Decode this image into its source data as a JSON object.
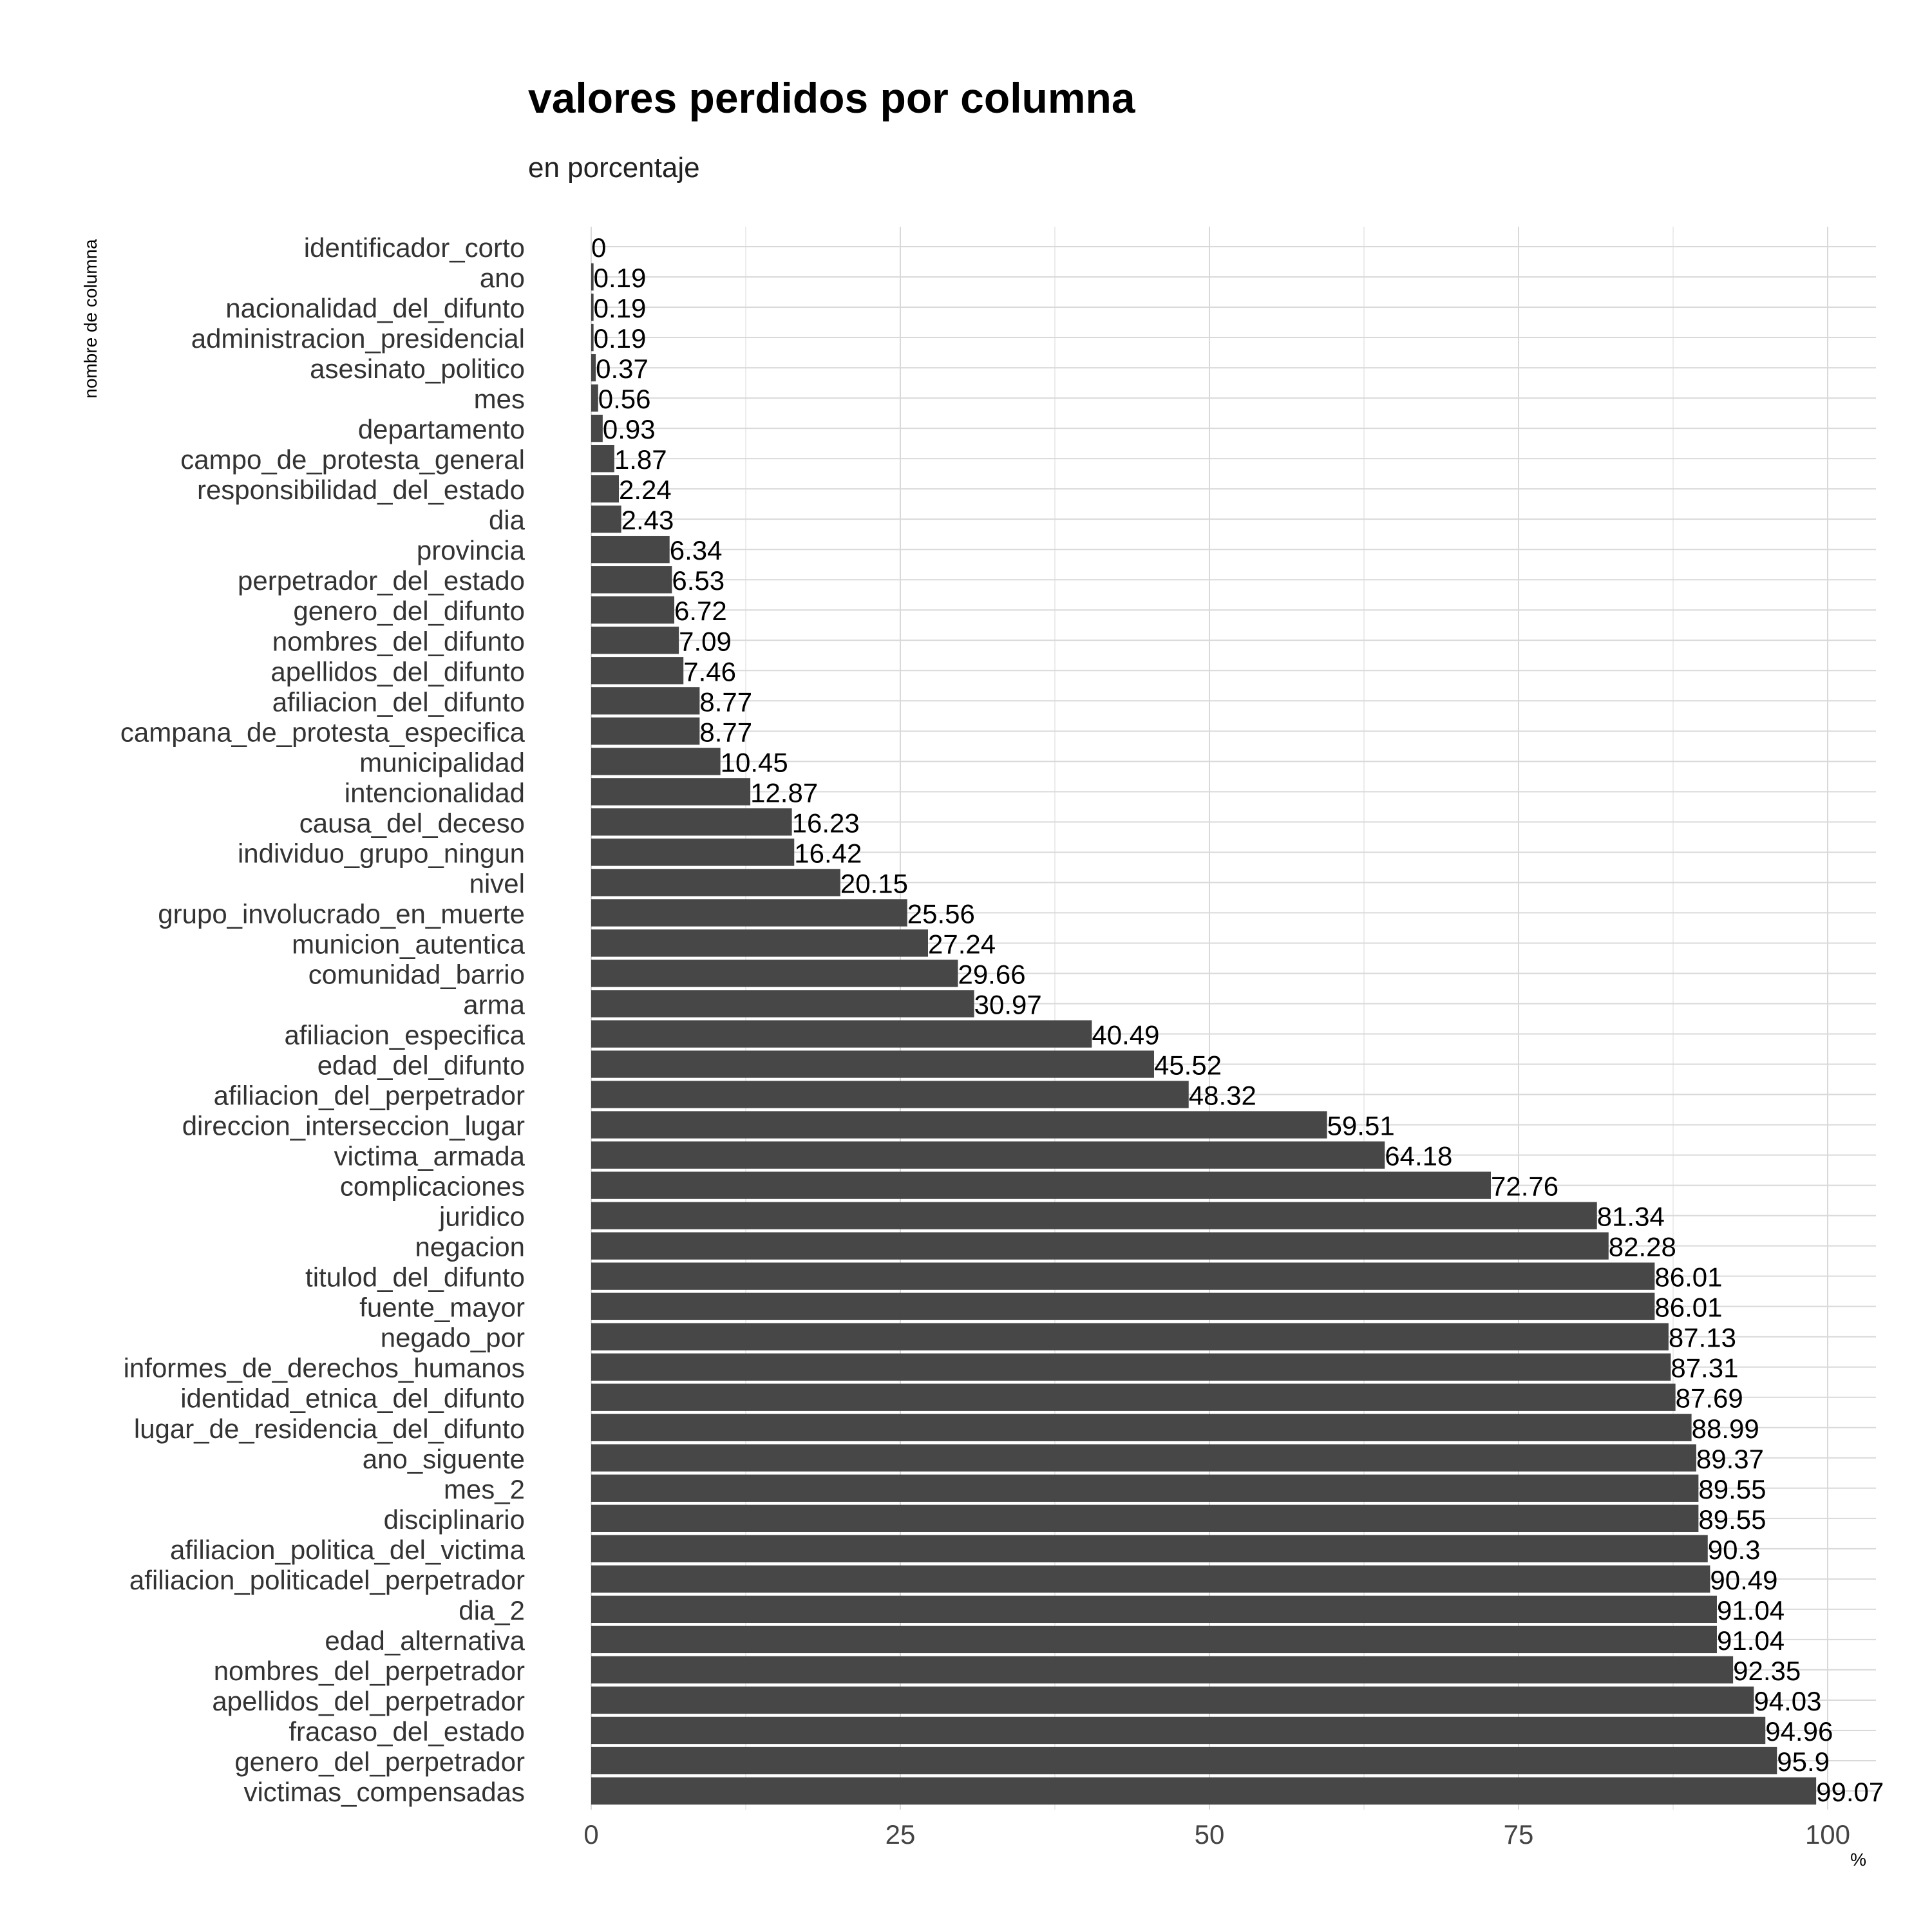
{
  "chart_data": {
    "type": "bar",
    "orientation": "horizontal",
    "title": "valores perdidos por columna",
    "subtitle": "en porcentaje",
    "xlabel": "%",
    "ylabel": "nombre de columna",
    "xlim": [
      0,
      100
    ],
    "xticks": [
      0,
      25,
      50,
      75,
      100
    ],
    "grid": true,
    "bar_color": "#474747",
    "categories": [
      "identificador_corto",
      "ano",
      "nacionalidad_del_difunto",
      "administracion_presidencial",
      "asesinato_politico",
      "mes",
      "departamento",
      "campo_de_protesta_general",
      "responsibilidad_del_estado",
      "dia",
      "provincia",
      "perpetrador_del_estado",
      "genero_del_difunto",
      "nombres_del_difunto",
      "apellidos_del_difunto",
      "afiliacion_del_difunto",
      "campana_de_protesta_especifica",
      "municipalidad",
      "intencionalidad",
      "causa_del_deceso",
      "individuo_grupo_ningun",
      "nivel",
      "grupo_involucrado_en_muerte",
      "municion_autentica",
      "comunidad_barrio",
      "arma",
      "afiliacion_especifica",
      "edad_del_difunto",
      "afiliacion_del_perpetrador",
      "direccion_interseccion_lugar",
      "victima_armada",
      "complicaciones",
      "juridico",
      "negacion",
      "titulod_del_difunto",
      "fuente_mayor",
      "negado_por",
      "informes_de_derechos_humanos",
      "identidad_etnica_del_difunto",
      "lugar_de_residencia_del_difunto",
      "ano_siguente",
      "mes_2",
      "disciplinario",
      "afiliacion_politica_del_victima",
      "afiliacion_politicadel_perpetrador",
      "dia_2",
      "edad_alternativa",
      "nombres_del_perpetrador",
      "apellidos_del_perpetrador",
      "fracaso_del_estado",
      "genero_del_perpetrador",
      "victimas_compensadas"
    ],
    "values": [
      0,
      0.19,
      0.19,
      0.19,
      0.37,
      0.56,
      0.93,
      1.87,
      2.24,
      2.43,
      6.34,
      6.53,
      6.72,
      7.09,
      7.46,
      8.77,
      8.77,
      10.45,
      12.87,
      16.23,
      16.42,
      20.15,
      25.56,
      27.24,
      29.66,
      30.97,
      40.49,
      45.52,
      48.32,
      59.51,
      64.18,
      72.76,
      81.34,
      82.28,
      86.01,
      86.01,
      87.13,
      87.31,
      87.69,
      88.99,
      89.37,
      89.55,
      89.55,
      90.3,
      90.49,
      91.04,
      91.04,
      92.35,
      94.03,
      94.96,
      95.9,
      99.07
    ],
    "value_labels": [
      "0",
      "0.19",
      "0.19",
      "0.19",
      "0.37",
      "0.56",
      "0.93",
      "1.87",
      "2.24",
      "2.43",
      "6.34",
      "6.53",
      "6.72",
      "7.09",
      "7.46",
      "8.77",
      "8.77",
      "10.45",
      "12.87",
      "16.23",
      "16.42",
      "20.15",
      "25.56",
      "27.24",
      "29.66",
      "30.97",
      "40.49",
      "45.52",
      "48.32",
      "59.51",
      "64.18",
      "72.76",
      "81.34",
      "82.28",
      "86.01",
      "86.01",
      "87.13",
      "87.31",
      "87.69",
      "88.99",
      "89.37",
      "89.55",
      "89.55",
      "90.3",
      "90.49",
      "91.04",
      "91.04",
      "92.35",
      "94.03",
      "94.96",
      "95.9",
      "99.07"
    ]
  }
}
